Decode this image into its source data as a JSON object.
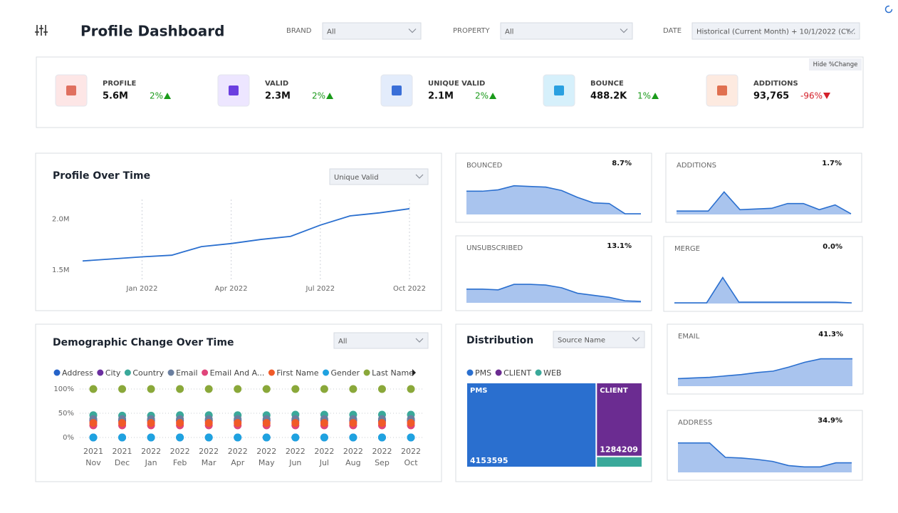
{
  "header": {
    "title": "Profile Dashboard",
    "filters": [
      {
        "label": "BRAND",
        "value": "All"
      },
      {
        "label": "PROPERTY",
        "value": "All"
      },
      {
        "label": "DATE",
        "value": "Historical (Current Month) + 10/1/2022 (CY..."
      }
    ]
  },
  "kpi_panel": {
    "toggle": "Hide %Change",
    "items": [
      {
        "label": "PROFILE",
        "value": "5.6M",
        "change": "2%",
        "trend": "up"
      },
      {
        "label": "VALID",
        "value": "2.3M",
        "change": "2%",
        "trend": "up"
      },
      {
        "label": "UNIQUE VALID",
        "value": "2.1M",
        "change": "2%",
        "trend": "up"
      },
      {
        "label": "BOUNCE",
        "value": "488.2K",
        "change": "1%",
        "trend": "up"
      },
      {
        "label": "ADDITIONS",
        "value": "93,765",
        "change": "-96%",
        "trend": "down"
      }
    ]
  },
  "chart_data": [
    {
      "type": "line",
      "title": "Profile Over Time",
      "control": "Unique Valid",
      "categories": [
        null,
        null,
        "Jan 2022",
        null,
        null,
        "Apr 2022",
        null,
        null,
        "Jul 2022",
        null,
        null,
        "Oct 2022"
      ],
      "values": [
        1590000,
        1610000,
        1630000,
        1646000,
        1730000,
        1760000,
        1800000,
        1830000,
        1940000,
        2030000,
        2060000,
        2100000
      ],
      "color": "#2a6fcf",
      "ylim": [
        1390000,
        2190000
      ],
      "yticks": [
        {
          "value": 1500000,
          "label": "1.5M"
        },
        {
          "value": 2000000,
          "label": "2.0M"
        }
      ],
      "xgrid": true
    },
    {
      "type": "dot",
      "title": "Demographic Change Over Time",
      "control": "All",
      "categories": [
        [
          "2021",
          "Nov"
        ],
        [
          "2021",
          "Dec"
        ],
        [
          "2022",
          "Jan"
        ],
        [
          "2022",
          "Feb"
        ],
        [
          "2022",
          "Mar"
        ],
        [
          "2022",
          "Apr"
        ],
        [
          "2022",
          "May"
        ],
        [
          "2022",
          "Jun"
        ],
        [
          "2022",
          "Jul"
        ],
        [
          "2022",
          "Aug"
        ],
        [
          "2022",
          "Sep"
        ],
        [
          "2022",
          "Oct"
        ]
      ],
      "series": [
        {
          "name": "Address",
          "color": "#2563c9",
          "values": [
            0,
            0,
            0,
            0,
            0,
            0,
            0,
            0,
            0,
            0,
            0,
            0
          ]
        },
        {
          "name": "City",
          "color": "#6b2fa0",
          "values": [
            35,
            35,
            35,
            35,
            35,
            35,
            35,
            35,
            35,
            35,
            35,
            35
          ]
        },
        {
          "name": "Country",
          "color": "#3aa99a",
          "values": [
            46,
            45,
            45,
            46,
            46,
            46,
            46,
            47,
            47,
            47,
            47,
            47
          ]
        },
        {
          "name": "Email",
          "color": "#6a7fa0",
          "values": [
            38,
            38,
            38,
            38,
            38,
            38,
            38,
            38,
            38,
            38,
            38,
            38
          ]
        },
        {
          "name": "Email And A...",
          "color": "#e0457b",
          "values": [
            25,
            25,
            25,
            25,
            25,
            25,
            25,
            25,
            25,
            25,
            25,
            25
          ]
        },
        {
          "name": "First Name",
          "color": "#f05a28",
          "values": [
            30,
            30,
            30,
            30,
            30,
            30,
            30,
            30,
            30,
            30,
            30,
            30
          ]
        },
        {
          "name": "Gender",
          "color": "#1fa2e0",
          "values": [
            0,
            0,
            0,
            0,
            0,
            0,
            0,
            0,
            0,
            0,
            0,
            0
          ]
        },
        {
          "name": "Last Name",
          "color": "#8aa83a",
          "values": [
            100,
            100,
            100,
            100,
            100,
            100,
            100,
            100,
            100,
            100,
            100,
            100
          ]
        }
      ],
      "ylim": [
        0,
        100
      ],
      "yticks": [
        {
          "value": 0,
          "label": "0%"
        },
        {
          "value": 50,
          "label": "50%"
        },
        {
          "value": 100,
          "label": "100%"
        }
      ],
      "grid": true
    },
    {
      "type": "treemap",
      "title": "Distribution",
      "control": "Source Name",
      "categories": [
        "PMS",
        "CLIENT",
        "WEB"
      ],
      "values": [
        4153595,
        1284209,
        190000
      ],
      "colors": [
        "#2a6fcf",
        "#6b2c91",
        "#3aa99a"
      ]
    },
    {
      "type": "area",
      "title": "BOUNCED",
      "summary": "8.7%",
      "values": [
        34,
        34,
        36,
        42,
        41,
        40,
        35,
        25,
        17,
        16,
        1,
        1
      ],
      "ylim": [
        0,
        50
      ],
      "color": "#2a6fcf"
    },
    {
      "type": "area",
      "title": "UNSUBSCRIBED",
      "summary": "13.1%",
      "values": [
        20,
        20,
        19,
        27,
        27,
        26,
        22,
        14,
        11,
        8,
        3,
        2
      ],
      "ylim": [
        0,
        50
      ],
      "color": "#2a6fcf"
    },
    {
      "type": "area",
      "title": "ADDITIONS",
      "summary": "1.7%",
      "values": [
        5,
        5,
        5,
        33,
        7,
        8,
        9,
        16,
        16,
        7,
        14,
        1
      ],
      "ylim": [
        0,
        50
      ],
      "color": "#2a6fcf"
    },
    {
      "type": "area",
      "title": "MERGE",
      "summary": "0.0%",
      "values": [
        1,
        1,
        1,
        38,
        2,
        2,
        2,
        2,
        2,
        2,
        2,
        1
      ],
      "ylim": [
        0,
        50
      ],
      "color": "#2a6fcf"
    },
    {
      "type": "area",
      "title": "EMAIL",
      "summary": "41.3%",
      "values": [
        11,
        12,
        13,
        15,
        17,
        20,
        22,
        28,
        35,
        40,
        40,
        40
      ],
      "ylim": [
        0,
        50
      ],
      "color": "#2a6fcf"
    },
    {
      "type": "area",
      "title": "ADDRESS",
      "summary": "34.9%",
      "values": [
        43,
        43,
        43,
        22,
        21,
        19,
        16,
        10,
        8,
        8,
        14,
        14
      ],
      "ylim": [
        0,
        50
      ],
      "color": "#2a6fcf"
    }
  ]
}
